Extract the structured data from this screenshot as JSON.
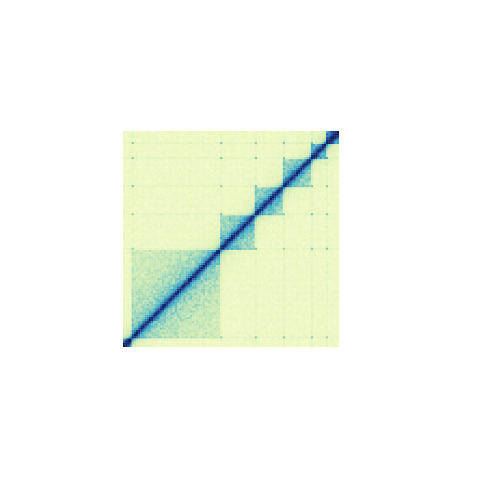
{
  "chart_data": {
    "type": "heatmap",
    "title": "",
    "xlabel": "",
    "ylabel": "",
    "grid": false,
    "legend": "none",
    "matrix": "contact-map",
    "symmetric": true,
    "bins": 100,
    "diagonal_orientation": "bottom-left-to-top-right",
    "colormap": [
      "#f7fccb",
      "#e7f4bd",
      "#c8e7b4",
      "#8fd1bb",
      "#4fb3c4",
      "#2a8dbd",
      "#2358a5",
      "#1e3588",
      "#0b1d5a"
    ],
    "domains": [
      {
        "start": 0,
        "end": 4,
        "intensity": 0.45
      },
      {
        "start": 4,
        "end": 45,
        "intensity": 0.32
      },
      {
        "start": 45,
        "end": 61,
        "intensity": 0.36
      },
      {
        "start": 61,
        "end": 74,
        "intensity": 0.36
      },
      {
        "start": 74,
        "end": 87,
        "intensity": 0.34
      },
      {
        "start": 87,
        "end": 94,
        "intensity": 0.38
      },
      {
        "start": 94,
        "end": 100,
        "intensity": 0.55
      }
    ],
    "boundary_dots": [
      4,
      45,
      61,
      74,
      87,
      94
    ]
  }
}
